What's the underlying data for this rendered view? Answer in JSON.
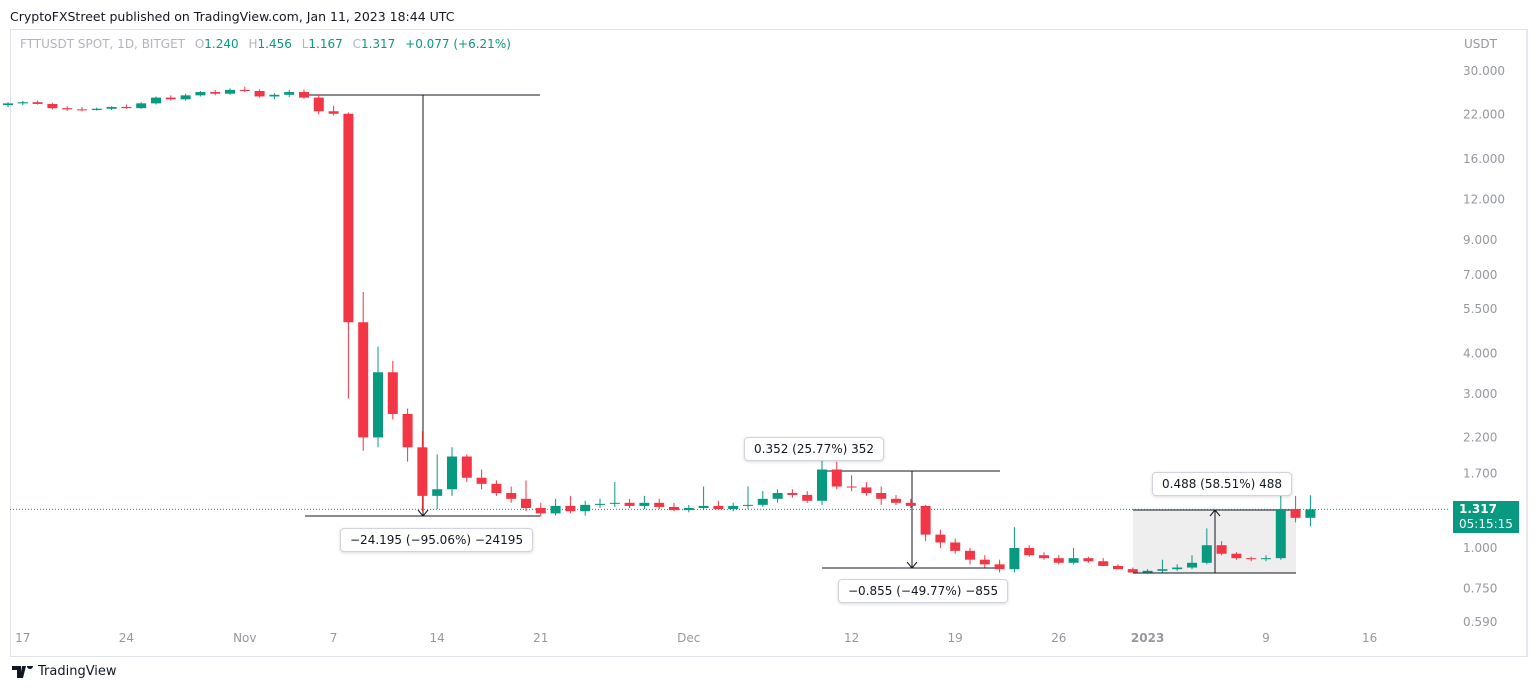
{
  "header": {
    "published": "CryptoFXStreet published on TradingView.com, Jan 11, 2023 18:44 UTC"
  },
  "legend": {
    "symbol": "FTTUSDT SPOT, 1D, BITGET",
    "o_label": "O",
    "o": "1.240",
    "h_label": "H",
    "h": "1.456",
    "l_label": "L",
    "l": "1.167",
    "c_label": "C",
    "c": "1.317",
    "change": "+0.077 (+6.21%)"
  },
  "price_axis": {
    "unit": "USDT",
    "last_price": "1.317",
    "countdown": "05:15:15"
  },
  "footer": {
    "brand": "TradingView"
  },
  "colors": {
    "up": "#089981",
    "down": "#f23645"
  },
  "measures": [
    {
      "label": "−24.195 (−95.06%) −24195"
    },
    {
      "label": "0.352 (25.77%) 352"
    },
    {
      "label": "−0.855 (−49.77%) −855"
    },
    {
      "label": "0.488 (58.51%) 488"
    }
  ],
  "chart_data": {
    "type": "candlestick",
    "scale": "log",
    "start_date": "2022-10-16",
    "interval": "1D",
    "ylim": [
      0.57,
      34
    ],
    "yticks": [
      "30.000",
      "22.000",
      "16.000",
      "12.000",
      "9.000",
      "7.000",
      "5.500",
      "4.000",
      "3.000",
      "2.200",
      "1.700",
      "1.000",
      "0.750",
      "0.590"
    ],
    "xticks": [
      {
        "label": "17",
        "day": 1
      },
      {
        "label": "24",
        "day": 8
      },
      {
        "label": "Nov",
        "day": 16
      },
      {
        "label": "7",
        "day": 22
      },
      {
        "label": "14",
        "day": 29
      },
      {
        "label": "21",
        "day": 36
      },
      {
        "label": "Dec",
        "day": 46
      },
      {
        "label": "12",
        "day": 57
      },
      {
        "label": "19",
        "day": 64
      },
      {
        "label": "26",
        "day": 71
      },
      {
        "label": "2023",
        "day": 77,
        "bold": true
      },
      {
        "label": "9",
        "day": 85
      },
      {
        "label": "16",
        "day": 92
      }
    ],
    "candles": [
      [
        23.5,
        24,
        23.2,
        23.8
      ],
      [
        23.8,
        24.2,
        23.5,
        24.0
      ],
      [
        24.0,
        24.3,
        23.6,
        23.7
      ],
      [
        23.7,
        23.9,
        22.8,
        23.0
      ],
      [
        23.0,
        23.3,
        22.6,
        22.8
      ],
      [
        22.8,
        23.2,
        22.5,
        22.7
      ],
      [
        22.7,
        23.1,
        22.6,
        22.9
      ],
      [
        22.9,
        23.3,
        22.7,
        23.2
      ],
      [
        23.2,
        23.6,
        22.9,
        23.0
      ],
      [
        23.0,
        24.0,
        22.9,
        23.8
      ],
      [
        23.8,
        25.0,
        23.6,
        24.8
      ],
      [
        24.8,
        25.2,
        24.3,
        24.5
      ],
      [
        24.5,
        25.5,
        24.3,
        25.2
      ],
      [
        25.2,
        26.0,
        25.0,
        25.8
      ],
      [
        25.8,
        26.2,
        25.2,
        25.5
      ],
      [
        25.5,
        26.5,
        25.3,
        26.2
      ],
      [
        26.2,
        26.8,
        25.8,
        26.0
      ],
      [
        26.0,
        26.3,
        24.8,
        25.0
      ],
      [
        25.0,
        25.6,
        24.5,
        25.3
      ],
      [
        25.3,
        26.2,
        24.9,
        25.8
      ],
      [
        25.8,
        26.3,
        24.6,
        24.8
      ],
      [
        24.8,
        25.4,
        22.0,
        22.5
      ],
      [
        22.5,
        23.4,
        21.8,
        22.1
      ],
      [
        22.1,
        22.3,
        2.9,
        5.0
      ],
      [
        5.0,
        6.2,
        2.0,
        2.2
      ],
      [
        2.2,
        4.2,
        2.05,
        3.5
      ],
      [
        3.5,
        3.8,
        2.5,
        2.6
      ],
      [
        2.6,
        2.7,
        1.85,
        2.05
      ],
      [
        2.05,
        2.3,
        1.3,
        1.45
      ],
      [
        1.45,
        1.95,
        1.32,
        1.52
      ],
      [
        1.52,
        2.05,
        1.45,
        1.92
      ],
      [
        1.92,
        1.95,
        1.6,
        1.65
      ],
      [
        1.65,
        1.75,
        1.52,
        1.58
      ],
      [
        1.58,
        1.62,
        1.45,
        1.48
      ],
      [
        1.48,
        1.55,
        1.38,
        1.42
      ],
      [
        1.42,
        1.62,
        1.3,
        1.33
      ],
      [
        1.33,
        1.38,
        1.25,
        1.28
      ],
      [
        1.28,
        1.42,
        1.26,
        1.35
      ],
      [
        1.35,
        1.45,
        1.28,
        1.3
      ],
      [
        1.3,
        1.4,
        1.26,
        1.36
      ],
      [
        1.36,
        1.42,
        1.33,
        1.37
      ],
      [
        1.37,
        1.6,
        1.34,
        1.38
      ],
      [
        1.38,
        1.42,
        1.33,
        1.35
      ],
      [
        1.35,
        1.45,
        1.32,
        1.38
      ],
      [
        1.38,
        1.42,
        1.32,
        1.34
      ],
      [
        1.34,
        1.38,
        1.3,
        1.31
      ],
      [
        1.31,
        1.36,
        1.29,
        1.33
      ],
      [
        1.33,
        1.55,
        1.31,
        1.35
      ],
      [
        1.35,
        1.4,
        1.31,
        1.32
      ],
      [
        1.32,
        1.38,
        1.3,
        1.35
      ],
      [
        1.35,
        1.55,
        1.32,
        1.36
      ],
      [
        1.36,
        1.5,
        1.34,
        1.42
      ],
      [
        1.42,
        1.52,
        1.38,
        1.48
      ],
      [
        1.48,
        1.52,
        1.43,
        1.46
      ],
      [
        1.46,
        1.5,
        1.38,
        1.4
      ],
      [
        1.4,
        1.95,
        1.36,
        1.75
      ],
      [
        1.75,
        1.85,
        1.52,
        1.55
      ],
      [
        1.55,
        1.68,
        1.5,
        1.54
      ],
      [
        1.54,
        1.6,
        1.45,
        1.48
      ],
      [
        1.48,
        1.55,
        1.36,
        1.42
      ],
      [
        1.42,
        1.46,
        1.36,
        1.38
      ],
      [
        1.38,
        1.42,
        1.33,
        1.35
      ],
      [
        1.35,
        1.36,
        1.05,
        1.1
      ],
      [
        1.1,
        1.14,
        1.0,
        1.04
      ],
      [
        1.04,
        1.07,
        0.96,
        0.98
      ],
      [
        0.98,
        1.0,
        0.89,
        0.92
      ],
      [
        0.92,
        0.95,
        0.87,
        0.89
      ],
      [
        0.89,
        0.92,
        0.84,
        0.86
      ],
      [
        0.86,
        1.16,
        0.84,
        1.0
      ],
      [
        1.0,
        1.02,
        0.94,
        0.95
      ],
      [
        0.95,
        0.97,
        0.92,
        0.93
      ],
      [
        0.93,
        0.95,
        0.89,
        0.9
      ],
      [
        0.9,
        1.0,
        0.89,
        0.93
      ],
      [
        0.93,
        0.94,
        0.9,
        0.91
      ],
      [
        0.91,
        0.93,
        0.88,
        0.88
      ],
      [
        0.88,
        0.89,
        0.86,
        0.86
      ],
      [
        0.86,
        0.87,
        0.84,
        0.84
      ],
      [
        0.84,
        0.86,
        0.83,
        0.85
      ],
      [
        0.85,
        0.92,
        0.84,
        0.86
      ],
      [
        0.86,
        0.89,
        0.85,
        0.87
      ],
      [
        0.87,
        0.95,
        0.86,
        0.9
      ],
      [
        0.9,
        1.15,
        0.89,
        1.02
      ],
      [
        1.02,
        1.05,
        0.95,
        0.96
      ],
      [
        0.96,
        0.97,
        0.92,
        0.93
      ],
      [
        0.93,
        0.94,
        0.91,
        0.925
      ],
      [
        0.925,
        0.95,
        0.91,
        0.93
      ],
      [
        0.93,
        1.52,
        0.92,
        1.32
      ],
      [
        1.32,
        1.45,
        1.2,
        1.24
      ],
      [
        1.24,
        1.456,
        1.167,
        1.317
      ]
    ]
  }
}
